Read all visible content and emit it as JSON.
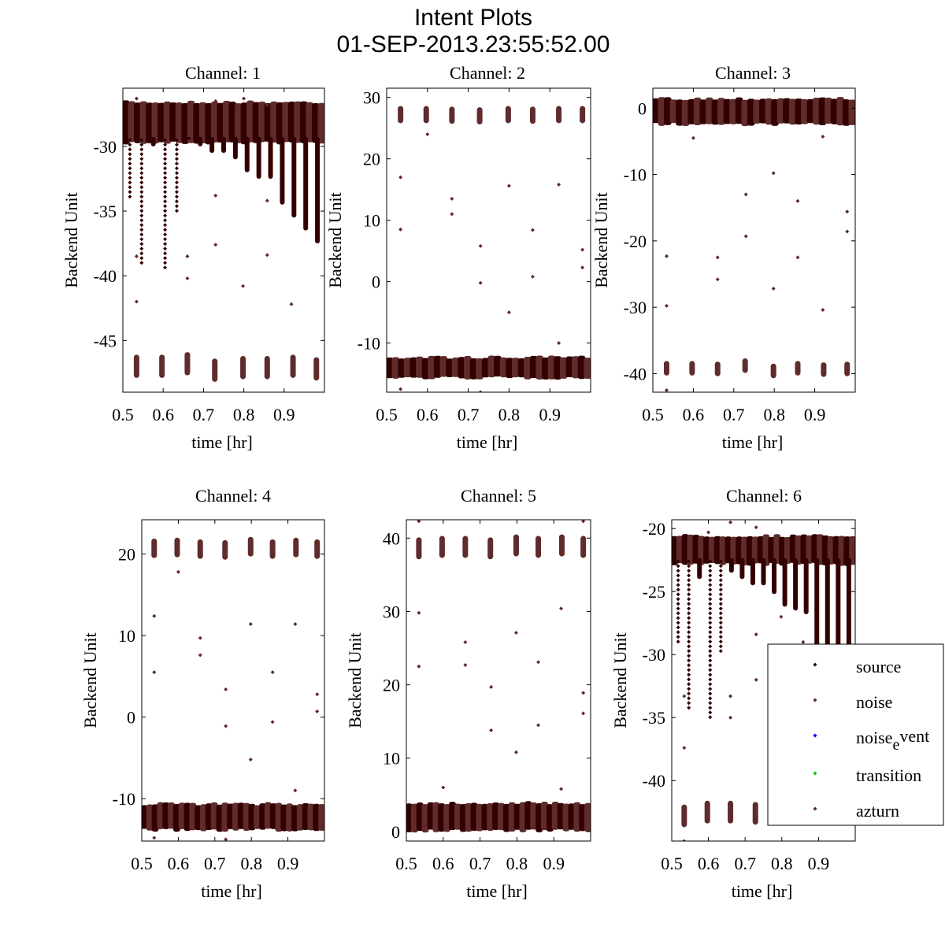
{
  "figure": {
    "title": "Intent Plots",
    "subtitle": "01-SEP-2013.23:55:52.00"
  },
  "colors": {
    "source": "#330000",
    "noise": "#5f2b2b",
    "noise_event": "#0000ff",
    "transition": "#00cc00",
    "azturn": "#5f2b2b",
    "axes": "#000000"
  },
  "chart_data": [
    {
      "type": "scatter",
      "title": "Channel: 1",
      "xlabel": "time [hr]",
      "ylabel": "Backend Unit",
      "xlim": [
        0.5,
        1.0
      ],
      "ylim": [
        -49,
        -25.5
      ],
      "xticks": [
        0.5,
        0.6,
        0.7,
        0.8,
        0.9
      ],
      "xtick_labels": [
        "0.5",
        "0.6",
        "0.7",
        "0.8",
        "0.9"
      ],
      "yticks": [
        -45,
        -40,
        -35,
        -30
      ],
      "ytick_labels": [
        "-45",
        "-40",
        "-35",
        "-30"
      ],
      "source_band": [
        -29.5,
        -26.8
      ],
      "source_dips": [
        -34,
        -39,
        -30,
        -39.5,
        -35,
        -29.5,
        -30,
        -30.5,
        -30.5,
        -31,
        -32,
        -32.5,
        -32.5,
        -34.5,
        -35.5,
        -36.5,
        -37.5
      ],
      "noise_clusters_y": [
        -47,
        -47,
        -46.8,
        -47.3,
        -47.1,
        -47.1,
        -47,
        -47.2
      ],
      "noise_cluster_spread": 0.9,
      "outliers": [
        [
          0.534,
          -42
        ],
        [
          0.534,
          -38.5
        ],
        [
          0.66,
          -38.5
        ],
        [
          0.66,
          -40.2
        ],
        [
          0.73,
          -33.8
        ],
        [
          0.73,
          -37.6
        ],
        [
          0.798,
          -40.8
        ],
        [
          0.858,
          -34.2
        ],
        [
          0.858,
          -38.4
        ],
        [
          0.918,
          -42.2
        ],
        [
          0.534,
          -26.3
        ],
        [
          0.73,
          -26.5
        ],
        [
          0.8,
          -26.3
        ],
        [
          0.858,
          -26.8
        ]
      ]
    },
    {
      "type": "scatter",
      "title": "Channel: 2",
      "xlabel": "time [hr]",
      "ylabel": "Backend Unit",
      "xlim": [
        0.5,
        1.0
      ],
      "ylim": [
        -18,
        31.5
      ],
      "xticks": [
        0.5,
        0.6,
        0.7,
        0.8,
        0.9
      ],
      "xtick_labels": [
        "0.5",
        "0.6",
        "0.7",
        "0.8",
        "0.9"
      ],
      "yticks": [
        -10,
        0,
        10,
        20,
        30
      ],
      "ytick_labels": [
        "-10",
        "0",
        "10",
        "20",
        "30"
      ],
      "source_band": [
        -15.2,
        -12.8
      ],
      "source_dips": [],
      "noise_clusters_y": [
        27.2,
        27.2,
        27.1,
        27,
        27.2,
        27.1,
        27.2,
        27.2
      ],
      "noise_cluster_spread": 1.4,
      "outliers": [
        [
          0.534,
          17
        ],
        [
          0.534,
          8.5
        ],
        [
          0.66,
          13.5
        ],
        [
          0.66,
          11
        ],
        [
          0.73,
          5.8
        ],
        [
          0.73,
          -0.2
        ],
        [
          0.8,
          15.6
        ],
        [
          0.8,
          -5
        ],
        [
          0.858,
          8.4
        ],
        [
          0.858,
          0.8
        ],
        [
          0.922,
          15.8
        ],
        [
          0.922,
          -10
        ],
        [
          0.98,
          5.2
        ],
        [
          0.98,
          2.3
        ],
        [
          0.6,
          24
        ],
        [
          0.534,
          -17.5
        ],
        [
          0.73,
          -18
        ]
      ]
    },
    {
      "type": "scatter",
      "title": "Channel: 3",
      "xlabel": "time [hr]",
      "ylabel": "Backend Unit",
      "xlim": [
        0.5,
        1.0
      ],
      "ylim": [
        -42.8,
        3
      ],
      "xticks": [
        0.5,
        0.6,
        0.7,
        0.8,
        0.9
      ],
      "xtick_labels": [
        "0.5",
        "0.6",
        "0.7",
        "0.8",
        "0.9"
      ],
      "yticks": [
        -40,
        -30,
        -20,
        -10,
        0
      ],
      "ytick_labels": [
        "-40",
        "-30",
        "-20",
        "-10",
        "0"
      ],
      "source_band": [
        -2,
        1
      ],
      "source_dips": [],
      "noise_clusters_y": [
        -39.2,
        -39.2,
        -39.3,
        -38.8,
        -39.6,
        -39.2,
        -39.4,
        -39.3
      ],
      "noise_cluster_spread": 1.1,
      "outliers": [
        [
          0.534,
          -22.3
        ],
        [
          0.534,
          -29.8
        ],
        [
          0.66,
          -22.5
        ],
        [
          0.66,
          -25.8
        ],
        [
          0.73,
          -13
        ],
        [
          0.73,
          -19.3
        ],
        [
          0.798,
          -9.8
        ],
        [
          0.798,
          -27.2
        ],
        [
          0.858,
          -14
        ],
        [
          0.858,
          -22.5
        ],
        [
          0.92,
          -30.4
        ],
        [
          0.98,
          -15.6
        ],
        [
          0.98,
          -18.6
        ],
        [
          0.6,
          -4.5
        ],
        [
          0.92,
          -4.3
        ],
        [
          0.534,
          -42.5
        ]
      ]
    },
    {
      "type": "scatter",
      "title": "Channel: 4",
      "xlabel": "time [hr]",
      "ylabel": "Backend Unit",
      "xlim": [
        0.5,
        1.0
      ],
      "ylim": [
        -15.2,
        24.2
      ],
      "xticks": [
        0.5,
        0.6,
        0.7,
        0.8,
        0.9
      ],
      "xtick_labels": [
        "0.5",
        "0.6",
        "0.7",
        "0.8",
        "0.9"
      ],
      "yticks": [
        -10,
        0,
        10,
        20
      ],
      "ytick_labels": [
        "-10",
        "0",
        "10",
        "20"
      ],
      "source_band": [
        -13.5,
        -11
      ],
      "source_dips": [],
      "noise_clusters_y": [
        20.7,
        20.8,
        20.6,
        20.5,
        20.9,
        20.6,
        20.8,
        20.6
      ],
      "noise_cluster_spread": 1.2,
      "outliers": [
        [
          0.534,
          12.4
        ],
        [
          0.534,
          5.5
        ],
        [
          0.66,
          9.7
        ],
        [
          0.66,
          7.6
        ],
        [
          0.73,
          3.4
        ],
        [
          0.73,
          -1.1
        ],
        [
          0.798,
          11.4
        ],
        [
          0.798,
          -5.2
        ],
        [
          0.858,
          5.5
        ],
        [
          0.858,
          -0.6
        ],
        [
          0.92,
          11.4
        ],
        [
          0.92,
          -9
        ],
        [
          0.98,
          2.8
        ],
        [
          0.98,
          0.7
        ],
        [
          0.6,
          17.8
        ],
        [
          0.534,
          -14.8
        ],
        [
          0.73,
          -15
        ]
      ]
    },
    {
      "type": "scatter",
      "title": "Channel: 5",
      "xlabel": "time [hr]",
      "ylabel": "Backend Unit",
      "xlim": [
        0.5,
        1.0
      ],
      "ylim": [
        -1.3,
        42.5
      ],
      "xticks": [
        0.5,
        0.6,
        0.7,
        0.8,
        0.9
      ],
      "xtick_labels": [
        "0.5",
        "0.6",
        "0.7",
        "0.8",
        "0.9"
      ],
      "yticks": [
        0,
        10,
        20,
        30,
        40
      ],
      "ytick_labels": [
        "0",
        "10",
        "20",
        "30",
        "40"
      ],
      "source_band": [
        0.5,
        3.5
      ],
      "source_dips": [],
      "noise_clusters_y": [
        38.6,
        38.8,
        38.8,
        38.6,
        39,
        38.8,
        39,
        38.8
      ],
      "noise_cluster_spread": 1.5,
      "outliers": [
        [
          0.534,
          29.8
        ],
        [
          0.534,
          22.5
        ],
        [
          0.66,
          25.8
        ],
        [
          0.66,
          22.7
        ],
        [
          0.73,
          19.7
        ],
        [
          0.73,
          13.8
        ],
        [
          0.798,
          27.1
        ],
        [
          0.798,
          10.8
        ],
        [
          0.858,
          23.1
        ],
        [
          0.858,
          14.5
        ],
        [
          0.92,
          30.4
        ],
        [
          0.92,
          5.8
        ],
        [
          0.98,
          18.9
        ],
        [
          0.98,
          16.1
        ],
        [
          0.6,
          6
        ],
        [
          0.534,
          42.3
        ],
        [
          0.98,
          42.3
        ]
      ]
    },
    {
      "type": "scatter",
      "title": "Channel: 6",
      "xlabel": "time [hr]",
      "ylabel": "Backend Unit",
      "xlim": [
        0.5,
        1.0
      ],
      "ylim": [
        -44.8,
        -19.3
      ],
      "xticks": [
        0.5,
        0.6,
        0.7,
        0.8,
        0.9
      ],
      "xtick_labels": [
        "0.5",
        "0.6",
        "0.7",
        "0.8",
        "0.9"
      ],
      "yticks": [
        -40,
        -35,
        -30,
        -25,
        -20
      ],
      "ytick_labels": [
        "-40",
        "-35",
        "-30",
        "-25",
        "-20"
      ],
      "source_band": [
        -22.6,
        -20.8
      ],
      "source_dips": [
        -29,
        -34.5,
        -24,
        -35.2,
        -30,
        -23.5,
        -24,
        -24.5,
        -24.5,
        -25.2,
        -26.2,
        -26.5,
        -26.8,
        -33,
        -33.5,
        -34,
        -34
      ],
      "noise_clusters_y": [
        -42.8,
        -42.5,
        -42.5,
        -42.6,
        -42.6,
        -42.6,
        -42.6,
        -42.6
      ],
      "noise_cluster_spread": 0.9,
      "outliers": [
        [
          0.534,
          -37.4
        ],
        [
          0.534,
          -33.3
        ],
        [
          0.66,
          -33.3
        ],
        [
          0.66,
          -35
        ],
        [
          0.73,
          -28.4
        ],
        [
          0.73,
          -32
        ],
        [
          0.798,
          -27
        ],
        [
          0.858,
          -29
        ],
        [
          0.534,
          -44.8
        ],
        [
          0.6,
          -20.3
        ],
        [
          0.66,
          -19.5
        ],
        [
          0.73,
          -19.9
        ]
      ]
    }
  ],
  "legend": {
    "placement": "lower-right of Channel 6",
    "entries": [
      {
        "label": "source",
        "color_key": "source"
      },
      {
        "label": "noise",
        "color_key": "noise"
      },
      {
        "label_main": "noise",
        "label_sub": "e",
        "label_rest": "vent",
        "color_key": "noise_event"
      },
      {
        "label": "transition",
        "color_key": "transition"
      },
      {
        "label": "azturn",
        "color_key": "azturn"
      }
    ]
  }
}
